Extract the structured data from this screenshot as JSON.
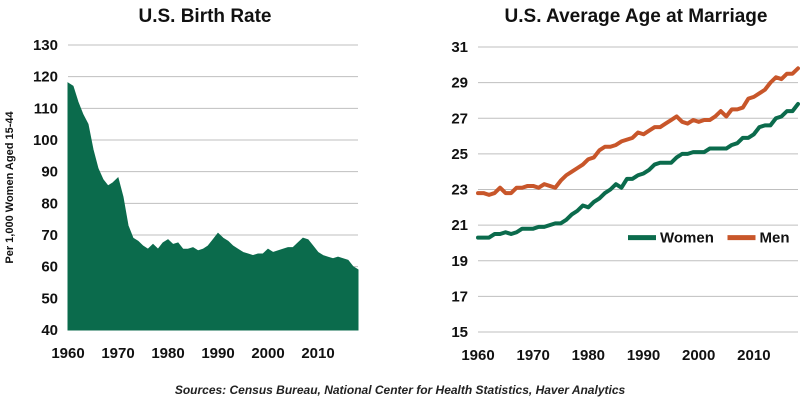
{
  "source_note": "Sources: Census Bureau, National Center for Health Statistics, Haver Analytics",
  "chart_data": [
    {
      "type": "area",
      "title": "U.S. Birth Rate",
      "ylabel": "Per 1,000 Women Aged 15-44",
      "xlim": [
        1960,
        2018
      ],
      "ylim": [
        40,
        130
      ],
      "xticks": [
        1960,
        1970,
        1980,
        1990,
        2000,
        2010
      ],
      "yticks": [
        40,
        50,
        60,
        70,
        80,
        90,
        100,
        110,
        120,
        130
      ],
      "grid": true,
      "color": "#0b6b4c",
      "x": [
        1960,
        1961,
        1962,
        1963,
        1964,
        1965,
        1966,
        1967,
        1968,
        1969,
        1970,
        1971,
        1972,
        1973,
        1974,
        1975,
        1976,
        1977,
        1978,
        1979,
        1980,
        1981,
        1982,
        1983,
        1984,
        1985,
        1986,
        1987,
        1988,
        1989,
        1990,
        1991,
        1992,
        1993,
        1994,
        1995,
        1996,
        1997,
        1998,
        1999,
        2000,
        2001,
        2002,
        2003,
        2004,
        2005,
        2006,
        2007,
        2008,
        2009,
        2010,
        2011,
        2012,
        2013,
        2014,
        2015,
        2016,
        2017,
        2018
      ],
      "values": [
        118,
        117,
        112,
        108,
        105,
        97,
        91,
        87.5,
        85.5,
        86.5,
        88,
        82,
        73,
        69,
        68,
        66.5,
        65.5,
        67,
        65.5,
        67.5,
        68.5,
        67,
        67.5,
        65.5,
        65.5,
        66,
        65,
        65.5,
        66.5,
        68.5,
        70.5,
        69,
        68,
        66.5,
        65.5,
        64.5,
        64,
        63.5,
        64,
        64,
        65.5,
        64.5,
        65,
        65.5,
        66,
        66,
        67.5,
        69,
        68.5,
        66.5,
        64.5,
        63.5,
        63,
        62.5,
        63,
        62.5,
        62,
        60,
        59
      ]
    },
    {
      "type": "line",
      "title": "U.S. Average Age at Marriage",
      "xlim": [
        1960,
        2018
      ],
      "ylim": [
        15,
        31
      ],
      "xticks": [
        1960,
        1970,
        1980,
        1990,
        2000,
        2010
      ],
      "yticks": [
        15,
        17,
        19,
        21,
        23,
        25,
        27,
        29,
        31
      ],
      "grid": true,
      "legend_position": "middle-right",
      "x": [
        1960,
        1961,
        1962,
        1963,
        1964,
        1965,
        1966,
        1967,
        1968,
        1969,
        1970,
        1971,
        1972,
        1973,
        1974,
        1975,
        1976,
        1977,
        1978,
        1979,
        1980,
        1981,
        1982,
        1983,
        1984,
        1985,
        1986,
        1987,
        1988,
        1989,
        1990,
        1991,
        1992,
        1993,
        1994,
        1995,
        1996,
        1997,
        1998,
        1999,
        2000,
        2001,
        2002,
        2003,
        2004,
        2005,
        2006,
        2007,
        2008,
        2009,
        2010,
        2011,
        2012,
        2013,
        2014,
        2015,
        2016,
        2017,
        2018
      ],
      "series": [
        {
          "name": "Women",
          "color": "#0b6b4c",
          "values": [
            20.3,
            20.3,
            20.3,
            20.5,
            20.5,
            20.6,
            20.5,
            20.6,
            20.8,
            20.8,
            20.8,
            20.9,
            20.9,
            21.0,
            21.1,
            21.1,
            21.3,
            21.6,
            21.8,
            22.1,
            22.0,
            22.3,
            22.5,
            22.8,
            23.0,
            23.3,
            23.1,
            23.6,
            23.6,
            23.8,
            23.9,
            24.1,
            24.4,
            24.5,
            24.5,
            24.5,
            24.8,
            25.0,
            25.0,
            25.1,
            25.1,
            25.1,
            25.3,
            25.3,
            25.3,
            25.3,
            25.5,
            25.6,
            25.9,
            25.9,
            26.1,
            26.5,
            26.6,
            26.6,
            27.0,
            27.1,
            27.4,
            27.4,
            27.8
          ]
        },
        {
          "name": "Men",
          "color": "#c8562a",
          "values": [
            22.8,
            22.8,
            22.7,
            22.8,
            23.1,
            22.8,
            22.8,
            23.1,
            23.1,
            23.2,
            23.2,
            23.1,
            23.3,
            23.2,
            23.1,
            23.5,
            23.8,
            24.0,
            24.2,
            24.4,
            24.7,
            24.8,
            25.2,
            25.4,
            25.4,
            25.5,
            25.7,
            25.8,
            25.9,
            26.2,
            26.1,
            26.3,
            26.5,
            26.5,
            26.7,
            26.9,
            27.1,
            26.8,
            26.7,
            26.9,
            26.8,
            26.9,
            26.9,
            27.1,
            27.4,
            27.1,
            27.5,
            27.5,
            27.6,
            28.1,
            28.2,
            28.4,
            28.6,
            29.0,
            29.3,
            29.2,
            29.5,
            29.5,
            29.8
          ]
        }
      ]
    }
  ]
}
